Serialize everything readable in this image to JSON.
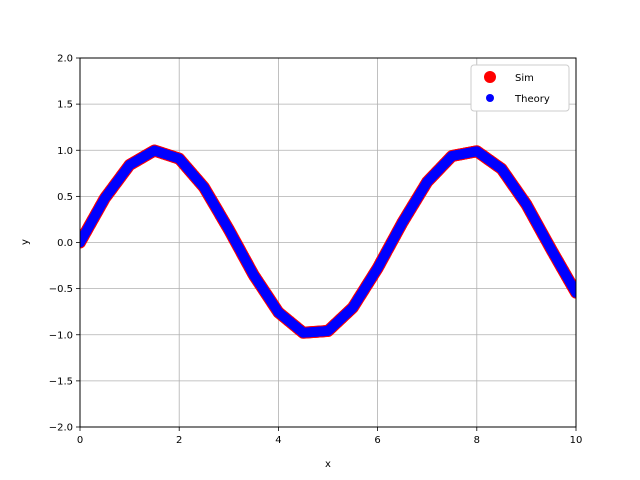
{
  "chart_data": {
    "type": "scatter",
    "xlabel": "x",
    "ylabel": "y",
    "xlim": [
      0,
      10
    ],
    "ylim": [
      -2.0,
      2.0
    ],
    "xticks": [
      "0",
      "2",
      "4",
      "6",
      "8",
      "10"
    ],
    "yticks": [
      "−2.0",
      "−1.5",
      "−1.0",
      "−0.5",
      "0.0",
      "0.5",
      "1.0",
      "1.5",
      "2.0"
    ],
    "grid": true,
    "legend_position": "top-right",
    "series": [
      {
        "name": "Sim",
        "color": "#ff0000",
        "marker": "large-circle",
        "x": [
          0.0,
          0.5,
          1.0,
          1.5,
          2.0,
          2.5,
          3.0,
          3.5,
          4.0,
          4.5,
          5.0,
          5.5,
          6.0,
          6.5,
          7.0,
          7.5,
          8.0,
          8.5,
          9.0,
          9.5,
          10.0
        ],
        "y": [
          0.0,
          0.479,
          0.841,
          0.997,
          0.909,
          0.598,
          0.141,
          -0.351,
          -0.757,
          -0.978,
          -0.959,
          -0.706,
          -0.279,
          0.215,
          0.657,
          0.938,
          0.989,
          0.798,
          0.412,
          -0.075,
          -0.544
        ]
      },
      {
        "name": "Theory",
        "color": "#0000ff",
        "marker": "small-circle",
        "x": [
          0.0,
          0.5,
          1.0,
          1.5,
          2.0,
          2.5,
          3.0,
          3.5,
          4.0,
          4.5,
          5.0,
          5.5,
          6.0,
          6.5,
          7.0,
          7.5,
          8.0,
          8.5,
          9.0,
          9.5,
          10.0
        ],
        "y": [
          0.0,
          0.479,
          0.841,
          0.997,
          0.909,
          0.598,
          0.141,
          -0.351,
          -0.757,
          -0.978,
          -0.959,
          -0.706,
          -0.279,
          0.215,
          0.657,
          0.938,
          0.989,
          0.798,
          0.412,
          -0.075,
          -0.544
        ]
      }
    ]
  }
}
